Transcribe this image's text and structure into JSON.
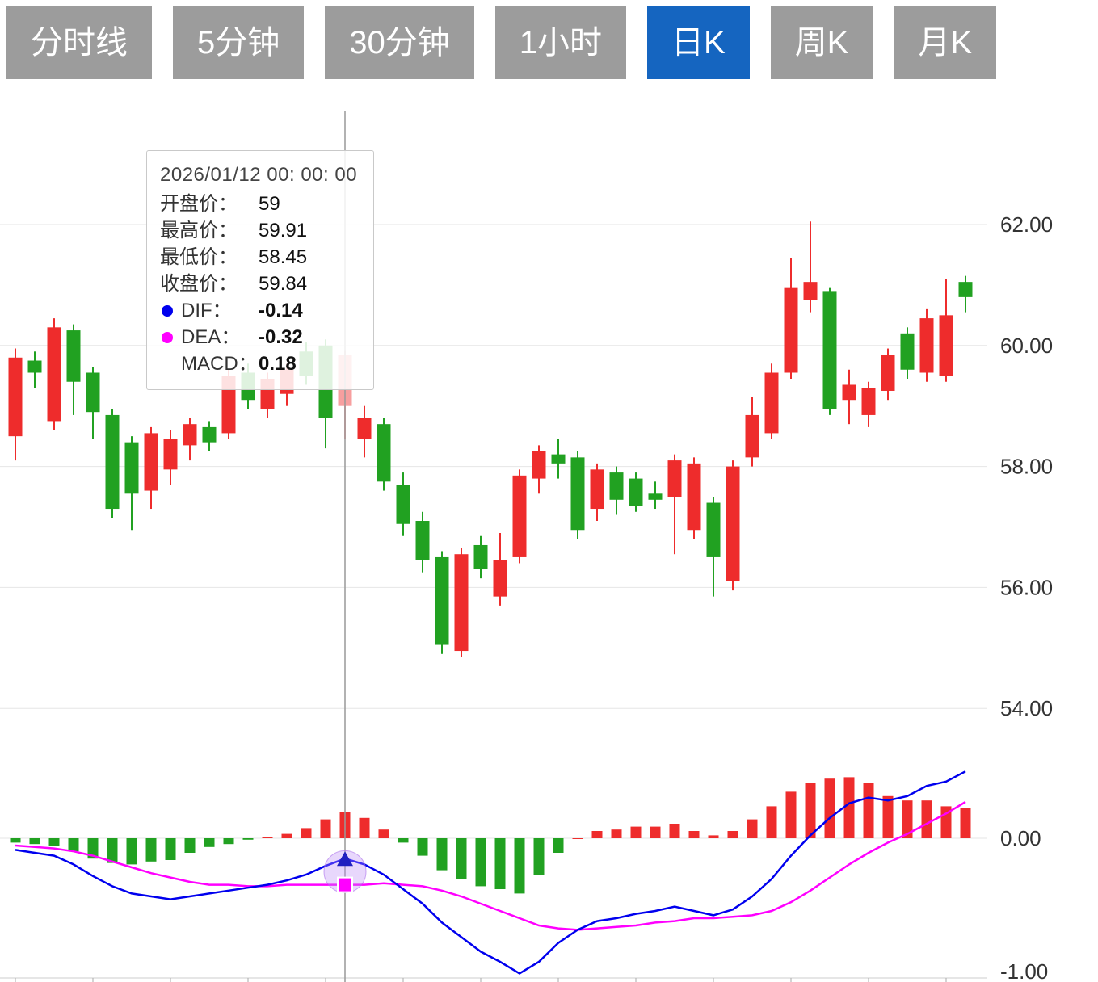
{
  "tabs": {
    "items": [
      {
        "label": "分时线",
        "active": false
      },
      {
        "label": "5分钟",
        "active": false
      },
      {
        "label": "30分钟",
        "active": false
      },
      {
        "label": "1小时",
        "active": false
      },
      {
        "label": "日K",
        "active": true
      },
      {
        "label": "周K",
        "active": false
      },
      {
        "label": "月K",
        "active": false
      }
    ]
  },
  "colors": {
    "tab_active_bg": "#1565c0",
    "tab_inactive_bg": "#9c9c9c",
    "tab_text": "#ffffff"
  },
  "tooltip": {
    "date": "2026/01/12 00: 00: 00",
    "rows": [
      {
        "label": "开盘价：",
        "value": "59"
      },
      {
        "label": "最高价：",
        "value": "59.91"
      },
      {
        "label": "最低价：",
        "value": "58.45"
      },
      {
        "label": "收盘价：",
        "value": "59.84"
      }
    ],
    "indicators": [
      {
        "label": "DIF：",
        "value": "-0.14",
        "dot": "#0000ee"
      },
      {
        "label": "DEA：",
        "value": "-0.32",
        "dot": "#ff00ff"
      },
      {
        "label": "MACD：",
        "value": "0.18",
        "dot": ""
      }
    ]
  },
  "axis": {
    "price_ticks": [
      {
        "label": "62.00",
        "value": 62
      },
      {
        "label": "60.00",
        "value": 60
      },
      {
        "label": "58.00",
        "value": 58
      },
      {
        "label": "56.00",
        "value": 56
      },
      {
        "label": "54.00",
        "value": 54
      }
    ],
    "macd_ticks": [
      {
        "label": "0.00",
        "value": 0
      },
      {
        "label": "-1.00",
        "value": -1
      }
    ]
  },
  "chart_data": {
    "type": "candlestick+macd",
    "title": "日K (daily candlestick) with MACD",
    "price_axis_range": [
      53.5,
      62.5
    ],
    "macd_axis_range": [
      -1.0,
      0.6
    ],
    "selected_index": 17,
    "selected": {
      "open": 59,
      "high": 59.91,
      "low": 58.45,
      "close": 59.84,
      "dif": -0.14,
      "dea": -0.32,
      "macd": 0.18
    },
    "candles": [
      [
        58.5,
        59.95,
        58.1,
        59.8
      ],
      [
        59.75,
        59.9,
        59.3,
        59.55
      ],
      [
        58.75,
        60.45,
        58.6,
        60.3
      ],
      [
        60.25,
        60.35,
        58.85,
        59.4
      ],
      [
        59.55,
        59.65,
        58.45,
        58.9
      ],
      [
        58.85,
        58.95,
        57.15,
        57.3
      ],
      [
        58.4,
        58.5,
        56.95,
        57.55
      ],
      [
        57.6,
        58.65,
        57.3,
        58.55
      ],
      [
        57.95,
        58.6,
        57.7,
        58.45
      ],
      [
        58.35,
        58.8,
        58.1,
        58.7
      ],
      [
        58.65,
        58.75,
        58.25,
        58.4
      ],
      [
        58.55,
        59.6,
        58.45,
        59.5
      ],
      [
        59.55,
        59.7,
        58.95,
        59.1
      ],
      [
        58.95,
        59.55,
        58.8,
        59.45
      ],
      [
        59.2,
        59.7,
        59.0,
        59.6
      ],
      [
        59.9,
        60.05,
        59.35,
        59.5
      ],
      [
        60.0,
        60.1,
        58.3,
        58.8
      ],
      [
        59.0,
        59.91,
        58.45,
        59.84
      ],
      [
        58.45,
        59.0,
        58.15,
        58.8
      ],
      [
        58.7,
        58.8,
        57.6,
        57.75
      ],
      [
        57.7,
        57.9,
        56.85,
        57.05
      ],
      [
        57.1,
        57.25,
        56.25,
        56.45
      ],
      [
        56.5,
        56.6,
        54.9,
        55.05
      ],
      [
        54.95,
        56.65,
        54.85,
        56.55
      ],
      [
        56.7,
        56.85,
        56.15,
        56.3
      ],
      [
        55.85,
        56.9,
        55.7,
        56.45
      ],
      [
        56.5,
        57.95,
        56.4,
        57.85
      ],
      [
        57.8,
        58.35,
        57.55,
        58.25
      ],
      [
        58.2,
        58.45,
        57.8,
        58.05
      ],
      [
        58.15,
        58.25,
        56.8,
        56.95
      ],
      [
        57.3,
        58.05,
        57.1,
        57.95
      ],
      [
        57.9,
        58.0,
        57.2,
        57.45
      ],
      [
        57.8,
        57.9,
        57.25,
        57.35
      ],
      [
        57.55,
        57.75,
        57.3,
        57.45
      ],
      [
        57.5,
        58.2,
        56.55,
        58.1
      ],
      [
        56.95,
        58.15,
        56.8,
        58.05
      ],
      [
        57.4,
        57.5,
        55.85,
        56.5
      ],
      [
        56.1,
        58.1,
        55.95,
        58.0
      ],
      [
        58.15,
        59.15,
        58.0,
        58.85
      ],
      [
        58.55,
        59.7,
        58.45,
        59.55
      ],
      [
        59.55,
        61.45,
        59.45,
        60.95
      ],
      [
        60.75,
        62.05,
        60.55,
        61.05
      ],
      [
        60.9,
        60.95,
        58.85,
        58.95
      ],
      [
        59.1,
        59.6,
        58.7,
        59.35
      ],
      [
        58.85,
        59.4,
        58.65,
        59.3
      ],
      [
        59.25,
        59.95,
        59.1,
        59.85
      ],
      [
        60.2,
        60.3,
        59.45,
        59.6
      ],
      [
        59.55,
        60.6,
        59.4,
        60.45
      ],
      [
        59.5,
        61.1,
        59.4,
        60.5
      ],
      [
        61.05,
        61.15,
        60.55,
        60.8
      ]
    ],
    "dif": [
      -0.08,
      -0.1,
      -0.12,
      -0.18,
      -0.26,
      -0.33,
      -0.38,
      -0.4,
      -0.42,
      -0.4,
      -0.38,
      -0.36,
      -0.34,
      -0.32,
      -0.29,
      -0.25,
      -0.19,
      -0.14,
      -0.18,
      -0.25,
      -0.35,
      -0.45,
      -0.58,
      -0.68,
      -0.78,
      -0.85,
      -0.93,
      -0.85,
      -0.72,
      -0.63,
      -0.57,
      -0.55,
      -0.52,
      -0.5,
      -0.47,
      -0.5,
      -0.53,
      -0.49,
      -0.4,
      -0.28,
      -0.12,
      0.02,
      0.14,
      0.24,
      0.28,
      0.26,
      0.29,
      0.36,
      0.39,
      0.46
    ],
    "dea": [
      -0.05,
      -0.06,
      -0.07,
      -0.09,
      -0.12,
      -0.16,
      -0.2,
      -0.24,
      -0.27,
      -0.3,
      -0.32,
      -0.32,
      -0.33,
      -0.33,
      -0.32,
      -0.32,
      -0.32,
      -0.32,
      -0.32,
      -0.31,
      -0.32,
      -0.33,
      -0.36,
      -0.4,
      -0.45,
      -0.5,
      -0.55,
      -0.6,
      -0.62,
      -0.63,
      -0.62,
      -0.61,
      -0.6,
      -0.58,
      -0.57,
      -0.55,
      -0.55,
      -0.54,
      -0.53,
      -0.5,
      -0.44,
      -0.36,
      -0.27,
      -0.18,
      -0.1,
      -0.03,
      0.03,
      0.1,
      0.17,
      0.25
    ],
    "macd": [
      -0.03,
      -0.04,
      -0.05,
      -0.09,
      -0.14,
      -0.17,
      -0.18,
      -0.16,
      -0.15,
      -0.1,
      -0.06,
      -0.04,
      -0.01,
      0.01,
      0.03,
      0.07,
      0.13,
      0.18,
      0.14,
      0.06,
      -0.03,
      -0.12,
      -0.22,
      -0.28,
      -0.33,
      -0.35,
      -0.38,
      -0.25,
      -0.1,
      0.0,
      0.05,
      0.06,
      0.08,
      0.08,
      0.1,
      0.05,
      0.02,
      0.05,
      0.13,
      0.22,
      0.32,
      0.38,
      0.41,
      0.42,
      0.38,
      0.29,
      0.26,
      0.26,
      0.22,
      0.21
    ],
    "legend": [
      "DIF",
      "DEA",
      "MACD"
    ],
    "colors": {
      "up": "#ee2c2c",
      "down": "#21a121",
      "dif": "#0000ee",
      "dea": "#ff00ff",
      "grid": "#e6e6e6",
      "crosshair": "#999999"
    }
  }
}
